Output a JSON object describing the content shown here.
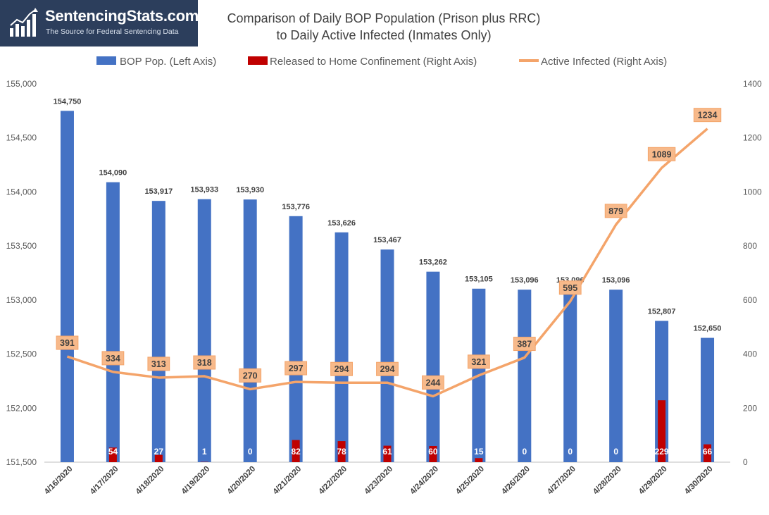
{
  "logo": {
    "name": "SentencingStats.com",
    "tagline": "The Source for Federal Sentencing Data"
  },
  "chart_data": {
    "type": "bar",
    "title": [
      "Comparison of Daily BOP Population (Prison plus RRC)",
      "to Daily Active Infected (Inmates Only)"
    ],
    "categories": [
      "4/16/2020",
      "4/17/2020",
      "4/18/2020",
      "4/19/2020",
      "4/20/2020",
      "4/21/2020",
      "4/22/2020",
      "4/23/2020",
      "4/24/2020",
      "4/25/2020",
      "4/26/2020",
      "4/27/2020",
      "4/28/2020",
      "4/29/2020",
      "4/30/2020"
    ],
    "series": [
      {
        "name": "BOP Pop. (Left Axis)",
        "type": "bar",
        "axis": "left",
        "color": "#4472c4",
        "values": [
          154750,
          154090,
          153917,
          153933,
          153930,
          153776,
          153626,
          153467,
          153262,
          153105,
          153096,
          153096,
          153096,
          152807,
          152650
        ],
        "labels": [
          "154,750",
          "154,090",
          "153,917",
          "153,933",
          "153,930",
          "153,776",
          "153,626",
          "153,467",
          "153,262",
          "153,105",
          "153,096",
          "153,096",
          "153,096",
          "152,807",
          "152,650"
        ]
      },
      {
        "name": "Released to Home Confinement (Right Axis)",
        "type": "bar",
        "axis": "right",
        "color": "#c00000",
        "values": [
          null,
          54,
          27,
          1,
          0,
          82,
          78,
          61,
          60,
          15,
          0,
          0,
          0,
          229,
          66
        ],
        "labels": [
          "",
          "54",
          "27",
          "1",
          "0",
          "82",
          "78",
          "61",
          "60",
          "15",
          "0",
          "0",
          "0",
          "229",
          "66"
        ]
      },
      {
        "name": "Active Infected (Right Axis)",
        "type": "line",
        "axis": "right",
        "color": "#f4a46a",
        "values": [
          391,
          334,
          313,
          318,
          270,
          297,
          294,
          294,
          244,
          321,
          387,
          595,
          879,
          1089,
          1234
        ],
        "labels": [
          "391",
          "334",
          "313",
          "318",
          "270",
          "297",
          "294",
          "294",
          "244",
          "321",
          "387",
          "595",
          "879",
          "1089",
          "1234"
        ]
      }
    ],
    "left_axis": {
      "ylim": [
        151500,
        155000
      ],
      "ticks": [
        151500,
        152000,
        152500,
        153000,
        153500,
        154000,
        154500,
        155000
      ],
      "tick_labels": [
        "151,500",
        "152,000",
        "152,500",
        "153,000",
        "153,500",
        "154,000",
        "154,500",
        "155,000"
      ]
    },
    "right_axis": {
      "ylim": [
        0,
        1400
      ],
      "ticks": [
        0,
        200,
        400,
        600,
        800,
        1000,
        1200,
        1400
      ],
      "tick_labels": [
        "0",
        "200",
        "400",
        "600",
        "800",
        "1000",
        "1200",
        "1400"
      ]
    },
    "legend_position": "top",
    "grid": false
  }
}
